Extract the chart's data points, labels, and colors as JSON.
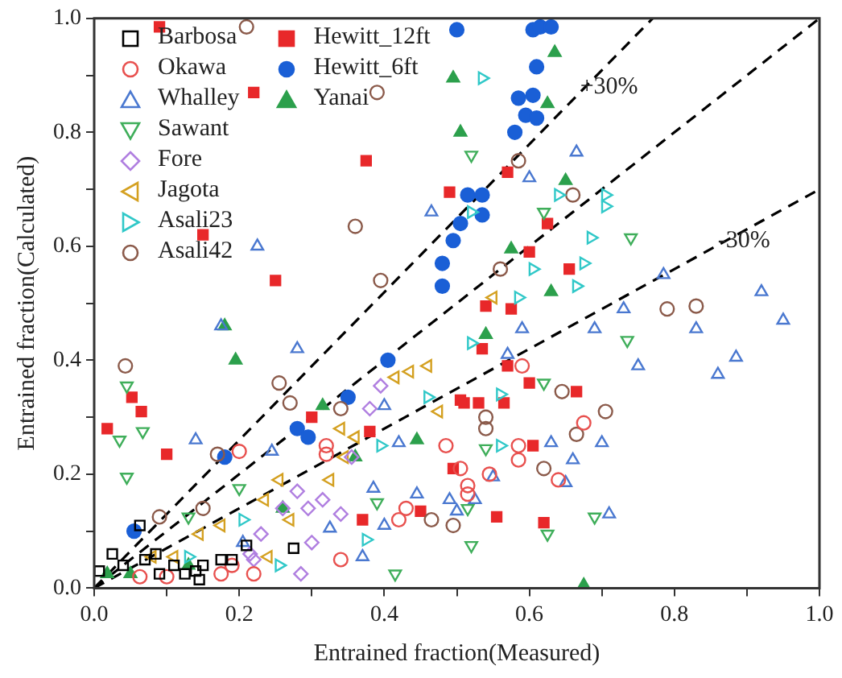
{
  "chart_data": {
    "type": "scatter",
    "xlabel": "Entrained fraction(Measured)",
    "ylabel": "Entrained fraction(Calculated)",
    "xlim": [
      0,
      1
    ],
    "ylim": [
      0,
      1
    ],
    "xticks": [
      {
        "value": 0,
        "label": "0.0"
      },
      {
        "value": 0.1,
        "label": null
      },
      {
        "value": 0.2,
        "label": "0.2"
      },
      {
        "value": 0.3,
        "label": null
      },
      {
        "value": 0.4,
        "label": "0.4"
      },
      {
        "value": 0.5,
        "label": null
      },
      {
        "value": 0.6,
        "label": "0.6"
      },
      {
        "value": 0.7,
        "label": null
      },
      {
        "value": 0.8,
        "label": "0.8"
      },
      {
        "value": 0.9,
        "label": null
      },
      {
        "value": 1,
        "label": "1.0"
      }
    ],
    "yticks": [
      {
        "value": 0,
        "label": "0.0"
      },
      {
        "value": 0.1,
        "label": null
      },
      {
        "value": 0.2,
        "label": "0.2"
      },
      {
        "value": 0.3,
        "label": null
      },
      {
        "value": 0.4,
        "label": "0.4"
      },
      {
        "value": 0.5,
        "label": null
      },
      {
        "value": 0.6,
        "label": "0.6"
      },
      {
        "value": 0.7,
        "label": null
      },
      {
        "value": 0.8,
        "label": "0.8"
      },
      {
        "value": 0.9,
        "label": null
      },
      {
        "value": 1,
        "label": "1.0"
      }
    ],
    "legend": "top left",
    "annotations": [
      {
        "text": "+30%",
        "x": 0.67,
        "y": 0.88
      },
      {
        "text": "-30%",
        "x": 0.86,
        "y": 0.61
      }
    ],
    "series": [
      {
        "name": "Barbosa",
        "color": "#000000",
        "marker": "square",
        "x": [
          0.063,
          0.025,
          0.04,
          0.07,
          0.085,
          0.11,
          0.09,
          0.125,
          0.14,
          0.15,
          0.175,
          0.19,
          0.275,
          0.007,
          0.145,
          0.21
        ],
        "values": [
          0.11,
          0.06,
          0.04,
          0.05,
          0.06,
          0.04,
          0.025,
          0.025,
          0.03,
          0.04,
          0.05,
          0.05,
          0.07,
          0.03,
          0.015,
          0.075
        ]
      },
      {
        "name": "Okawa",
        "color": "#e8504e",
        "marker": "circle",
        "x": [
          0.175,
          0.19,
          0.22,
          0.063,
          0.1,
          0.34,
          0.32,
          0.32,
          0.2,
          0.42,
          0.43,
          0.485,
          0.59,
          0.675,
          0.585,
          0.585,
          0.505,
          0.545,
          0.515,
          0.515,
          0.64
        ],
        "values": [
          0.025,
          0.04,
          0.025,
          0.02,
          0.02,
          0.05,
          0.25,
          0.235,
          0.24,
          0.12,
          0.14,
          0.25,
          0.39,
          0.29,
          0.25,
          0.225,
          0.21,
          0.2,
          0.18,
          0.165,
          0.19
        ]
      },
      {
        "name": "Whalley",
        "color": "#4a78d0",
        "marker": "triangle",
        "x": [
          0.665,
          0.6,
          0.785,
          0.92,
          0.465,
          0.225,
          0.73,
          0.69,
          0.59,
          0.83,
          0.95,
          0.75,
          0.885,
          0.86,
          0.63,
          0.7,
          0.66,
          0.65,
          0.55,
          0.71,
          0.57,
          0.5,
          0.525,
          0.175,
          0.28,
          0.14,
          0.245,
          0.4,
          0.42,
          0.385,
          0.445,
          0.49,
          0.325,
          0.4,
          0.37,
          0.205
        ],
        "values": [
          0.765,
          0.72,
          0.55,
          0.52,
          0.66,
          0.6,
          0.49,
          0.455,
          0.455,
          0.455,
          0.47,
          0.39,
          0.405,
          0.375,
          0.255,
          0.255,
          0.225,
          0.185,
          0.195,
          0.13,
          0.41,
          0.135,
          0.155,
          0.46,
          0.42,
          0.26,
          0.24,
          0.32,
          0.255,
          0.175,
          0.165,
          0.155,
          0.105,
          0.11,
          0.055,
          0.08
        ]
      },
      {
        "name": "Sawant",
        "color": "#3fae5a",
        "marker": "triangle-down",
        "x": [
          0.52,
          0.62,
          0.74,
          0.735,
          0.62,
          0.54,
          0.69,
          0.625,
          0.52,
          0.515,
          0.045,
          0.035,
          0.067,
          0.045,
          0.2,
          0.13,
          0.415,
          0.39
        ],
        "values": [
          0.76,
          0.66,
          0.615,
          0.435,
          0.36,
          0.245,
          0.125,
          0.095,
          0.075,
          0.14,
          0.355,
          0.26,
          0.275,
          0.195,
          0.175,
          0.125,
          0.025,
          0.15
        ]
      },
      {
        "name": "Fore",
        "color": "#b07fe0",
        "marker": "diamond",
        "x": [
          0.23,
          0.26,
          0.28,
          0.315,
          0.34,
          0.3,
          0.22,
          0.285,
          0.38,
          0.395,
          0.355,
          0.295,
          0.215
        ],
        "values": [
          0.095,
          0.14,
          0.17,
          0.155,
          0.13,
          0.08,
          0.05,
          0.025,
          0.315,
          0.355,
          0.23,
          0.14,
          0.06
        ]
      },
      {
        "name": "Jagota",
        "color": "#d4a020",
        "marker": "triangle-left",
        "x": [
          0.415,
          0.435,
          0.46,
          0.475,
          0.34,
          0.36,
          0.345,
          0.325,
          0.255,
          0.235,
          0.27,
          0.175,
          0.145,
          0.08,
          0.11,
          0.24,
          0.55
        ],
        "values": [
          0.37,
          0.38,
          0.39,
          0.31,
          0.28,
          0.265,
          0.23,
          0.19,
          0.19,
          0.155,
          0.12,
          0.11,
          0.095,
          0.055,
          0.055,
          0.055,
          0.51
        ]
      },
      {
        "name": "Asali23",
        "color": "#30c8c8",
        "marker": "triangle-right",
        "x": [
          0.535,
          0.64,
          0.705,
          0.705,
          0.52,
          0.685,
          0.605,
          0.675,
          0.665,
          0.585,
          0.52,
          0.56,
          0.56,
          0.395,
          0.205,
          0.13,
          0.255,
          0.375,
          0.46
        ],
        "values": [
          0.895,
          0.69,
          0.69,
          0.67,
          0.66,
          0.615,
          0.56,
          0.57,
          0.53,
          0.51,
          0.43,
          0.34,
          0.25,
          0.25,
          0.12,
          0.055,
          0.04,
          0.085,
          0.335
        ]
      },
      {
        "name": "Asali42",
        "color": "#8b5a4a",
        "marker": "circle",
        "x": [
          0.39,
          0.21,
          0.36,
          0.395,
          0.585,
          0.66,
          0.56,
          0.83,
          0.79,
          0.645,
          0.705,
          0.54,
          0.54,
          0.665,
          0.62,
          0.495,
          0.043,
          0.255,
          0.27,
          0.17,
          0.15,
          0.09,
          0.34,
          0.465
        ],
        "values": [
          0.87,
          0.985,
          0.635,
          0.54,
          0.75,
          0.69,
          0.56,
          0.495,
          0.49,
          0.345,
          0.31,
          0.3,
          0.28,
          0.27,
          0.21,
          0.11,
          0.39,
          0.36,
          0.325,
          0.235,
          0.14,
          0.125,
          0.315,
          0.12
        ]
      },
      {
        "name": "Hewitt_12ft",
        "color": "#e8282a",
        "marker": "square-filled",
        "x": [
          0.09,
          0.22,
          0.375,
          0.49,
          0.15,
          0.25,
          0.57,
          0.625,
          0.6,
          0.655,
          0.54,
          0.575,
          0.535,
          0.57,
          0.6,
          0.665,
          0.51,
          0.53,
          0.565,
          0.605,
          0.495,
          0.555,
          0.62,
          0.052,
          0.065,
          0.018,
          0.1,
          0.3,
          0.38,
          0.37,
          0.45,
          0.505
        ],
        "values": [
          0.985,
          0.87,
          0.75,
          0.695,
          0.62,
          0.54,
          0.73,
          0.64,
          0.59,
          0.56,
          0.495,
          0.49,
          0.42,
          0.39,
          0.36,
          0.345,
          0.325,
          0.325,
          0.325,
          0.25,
          0.21,
          0.125,
          0.115,
          0.335,
          0.31,
          0.28,
          0.235,
          0.3,
          0.275,
          0.12,
          0.135,
          0.33
        ]
      },
      {
        "name": "Hewitt_6ft",
        "color": "#1a5fd6",
        "marker": "circle-filled",
        "x": [
          0.5,
          0.605,
          0.615,
          0.63,
          0.61,
          0.585,
          0.605,
          0.595,
          0.61,
          0.58,
          0.515,
          0.535,
          0.505,
          0.535,
          0.495,
          0.48,
          0.48,
          0.405,
          0.35,
          0.28,
          0.295,
          0.18,
          0.055
        ],
        "values": [
          0.98,
          0.98,
          0.985,
          0.985,
          0.915,
          0.86,
          0.865,
          0.83,
          0.825,
          0.8,
          0.69,
          0.69,
          0.64,
          0.655,
          0.61,
          0.57,
          0.53,
          0.4,
          0.335,
          0.28,
          0.265,
          0.23,
          0.1
        ]
      },
      {
        "name": "Yanai",
        "color": "#2ca04c",
        "marker": "triangle-filled",
        "x": [
          0.635,
          0.495,
          0.625,
          0.505,
          0.65,
          0.575,
          0.63,
          0.18,
          0.195,
          0.315,
          0.36,
          0.445,
          0.26,
          0.13,
          0.05,
          0.018,
          0.54,
          0.675
        ],
        "values": [
          0.94,
          0.895,
          0.85,
          0.8,
          0.715,
          0.595,
          0.52,
          0.46,
          0.4,
          0.32,
          0.23,
          0.26,
          0.14,
          0.04,
          0.025,
          0.025,
          0.445,
          0.005
        ]
      },
      {
        "type": "line",
        "color": "#000000",
        "marker": "none",
        "line_style": "dashed",
        "x": [
          0,
          0.77
        ],
        "values": [
          0,
          1
        ]
      },
      {
        "type": "line",
        "color": "#000000",
        "marker": "none",
        "line_style": "dashed",
        "x": [
          0,
          1
        ],
        "values": [
          0,
          1
        ]
      },
      {
        "type": "line",
        "color": "#000000",
        "marker": "none",
        "line_style": "dashed",
        "x": [
          0,
          1
        ],
        "values": [
          0,
          0.7
        ]
      }
    ]
  }
}
